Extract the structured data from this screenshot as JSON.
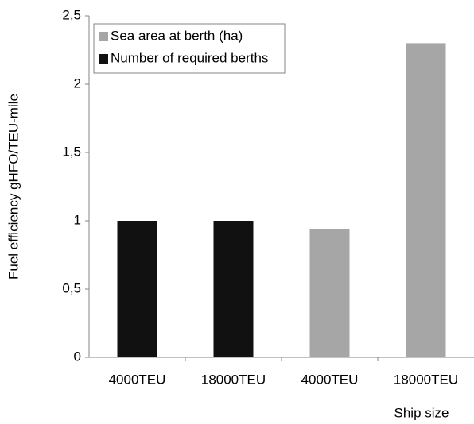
{
  "chart_data": {
    "type": "bar",
    "y_label": "Fuel efficiency gHFO/TEU-mile",
    "x_label": "Ship size",
    "categories": [
      "4000TEU",
      "18000TEU",
      "4000TEU",
      "18000TEU"
    ],
    "series": [
      {
        "name": "Sea area at berth (ha)",
        "color": "#a6a6a6",
        "values": [
          null,
          null,
          0.94,
          2.3
        ]
      },
      {
        "name": "Number of required berths",
        "color": "#111111",
        "values": [
          1,
          1,
          null,
          null
        ]
      }
    ],
    "ylim": [
      0,
      2.5
    ],
    "yticks": [
      0,
      {
        "value": 0.5,
        "label": "0,5"
      },
      1,
      {
        "value": 1.5,
        "label": "1,5"
      },
      2,
      {
        "value": 2.5,
        "label": "2,5"
      }
    ],
    "grid": false,
    "legend": "upper-left"
  }
}
